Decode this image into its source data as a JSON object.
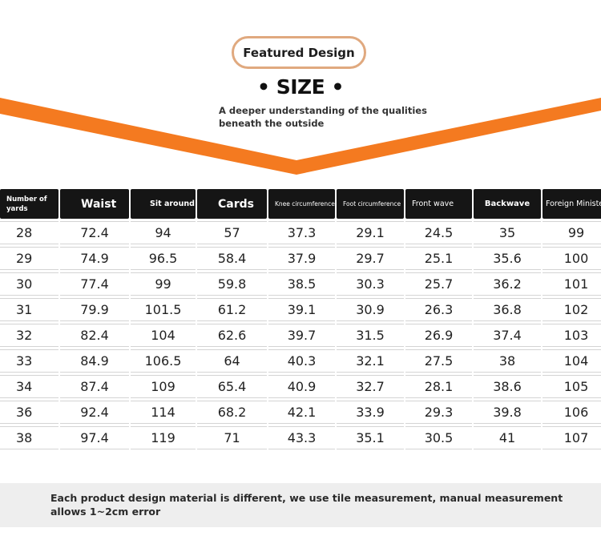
{
  "header": {
    "badge": "Featured Design",
    "title": "• SIZE •",
    "tagline": "A deeper understanding of the qualities beneath the outside",
    "accent_color": "#f47a20"
  },
  "table": {
    "columns": [
      "Number of yards",
      "Waist",
      "Sit around",
      "Cards",
      "Knee circumference",
      "Foot circumference",
      "Front wave",
      "Backwave",
      "Foreign Minister"
    ],
    "rows": [
      [
        "28",
        "72.4",
        "94",
        "57",
        "37.3",
        "29.1",
        "24.5",
        "35",
        "99"
      ],
      [
        "29",
        "74.9",
        "96.5",
        "58.4",
        "37.9",
        "29.7",
        "25.1",
        "35.6",
        "100"
      ],
      [
        "30",
        "77.4",
        "99",
        "59.8",
        "38.5",
        "30.3",
        "25.7",
        "36.2",
        "101"
      ],
      [
        "31",
        "79.9",
        "101.5",
        "61.2",
        "39.1",
        "30.9",
        "26.3",
        "36.8",
        "102"
      ],
      [
        "32",
        "82.4",
        "104",
        "62.6",
        "39.7",
        "31.5",
        "26.9",
        "37.4",
        "103"
      ],
      [
        "33",
        "84.9",
        "106.5",
        "64",
        "40.3",
        "32.1",
        "27.5",
        "38",
        "104"
      ],
      [
        "34",
        "87.4",
        "109",
        "65.4",
        "40.9",
        "32.7",
        "28.1",
        "38.6",
        "105"
      ],
      [
        "36",
        "92.4",
        "114",
        "68.2",
        "42.1",
        "33.9",
        "29.3",
        "39.8",
        "106"
      ],
      [
        "38",
        "97.4",
        "119",
        "71",
        "43.3",
        "35.1",
        "30.5",
        "41",
        "107"
      ]
    ]
  },
  "note": {
    "text": "Each product design material is different, we use tile measurement, manual measurement allows 1~2cm error"
  }
}
